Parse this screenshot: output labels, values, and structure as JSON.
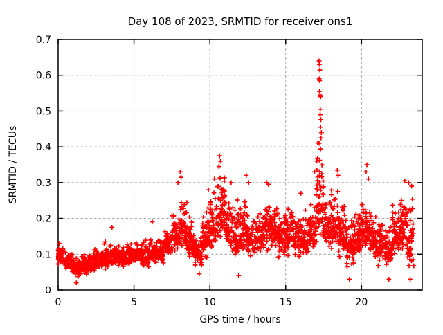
{
  "chart_data": {
    "type": "scatter",
    "title": "Day 108 of 2023, SRMTID for receiver ons1",
    "xlabel": "GPS time / hours",
    "ylabel": "SRMTID / TECUs",
    "xlim": [
      0,
      24
    ],
    "ylim": [
      0,
      0.7
    ],
    "xtick_values": [
      0,
      5,
      10,
      15,
      20
    ],
    "xtick_labels": [
      "0",
      "5",
      "10",
      "15",
      "20"
    ],
    "ytick_values": [
      0,
      0.1,
      0.2,
      0.3,
      0.4,
      0.5,
      0.6,
      0.7
    ],
    "ytick_labels": [
      "0",
      "0.1",
      "0.2",
      "0.3",
      "0.4",
      "0.5",
      "0.6",
      "0.7"
    ],
    "grid": true,
    "grid_color": "#a0a0a0",
    "axis_color": "#000000",
    "background_color": "#ffffff",
    "legend": "none",
    "marker": "plus",
    "marker_color": "#ff0000",
    "series_description": "SRMTID scatter, dense band ~0.05-0.2 TECUs; peaks ~0.33 at 8.0h, ~0.38 at 10.7h, maximum spike 0.64 at 17.2h, ~0.35 at 20.4h; data spans 0 to ~23.4 h",
    "density_bins": [
      [
        0.0,
        0.5,
        50,
        0.05,
        0.09,
        0.15
      ],
      [
        0.5,
        1.0,
        50,
        0.04,
        0.075,
        0.12
      ],
      [
        1.0,
        1.5,
        50,
        0.03,
        0.065,
        0.1
      ],
      [
        1.5,
        2.0,
        50,
        0.04,
        0.07,
        0.11
      ],
      [
        2.0,
        2.5,
        50,
        0.04,
        0.075,
        0.12
      ],
      [
        2.5,
        3.0,
        50,
        0.05,
        0.08,
        0.13
      ],
      [
        3.0,
        3.5,
        50,
        0.05,
        0.09,
        0.15
      ],
      [
        3.5,
        4.0,
        50,
        0.06,
        0.09,
        0.14
      ],
      [
        4.0,
        4.5,
        50,
        0.06,
        0.09,
        0.13
      ],
      [
        4.5,
        5.0,
        50,
        0.06,
        0.095,
        0.14
      ],
      [
        5.0,
        5.5,
        50,
        0.07,
        0.1,
        0.14
      ],
      [
        5.5,
        6.0,
        50,
        0.06,
        0.095,
        0.15
      ],
      [
        6.0,
        6.5,
        50,
        0.07,
        0.1,
        0.16
      ],
      [
        6.5,
        7.0,
        50,
        0.07,
        0.105,
        0.15
      ],
      [
        7.0,
        7.5,
        50,
        0.08,
        0.12,
        0.18
      ],
      [
        7.5,
        8.0,
        50,
        0.09,
        0.15,
        0.26
      ],
      [
        8.0,
        8.5,
        50,
        0.1,
        0.17,
        0.31
      ],
      [
        8.5,
        9.0,
        50,
        0.08,
        0.13,
        0.22
      ],
      [
        9.0,
        9.5,
        50,
        0.06,
        0.1,
        0.16
      ],
      [
        9.5,
        10.0,
        50,
        0.08,
        0.14,
        0.26
      ],
      [
        10.0,
        10.5,
        50,
        0.1,
        0.18,
        0.3
      ],
      [
        10.5,
        11.0,
        55,
        0.12,
        0.21,
        0.36
      ],
      [
        11.0,
        11.5,
        50,
        0.1,
        0.17,
        0.28
      ],
      [
        11.5,
        12.0,
        50,
        0.07,
        0.14,
        0.27
      ],
      [
        12.0,
        12.5,
        50,
        0.1,
        0.16,
        0.28
      ],
      [
        12.5,
        13.0,
        50,
        0.08,
        0.14,
        0.24
      ],
      [
        13.0,
        13.5,
        50,
        0.1,
        0.15,
        0.24
      ],
      [
        13.5,
        14.0,
        50,
        0.1,
        0.17,
        0.29
      ],
      [
        14.0,
        14.5,
        50,
        0.1,
        0.16,
        0.26
      ],
      [
        14.5,
        15.0,
        50,
        0.08,
        0.14,
        0.23
      ],
      [
        15.0,
        15.5,
        50,
        0.09,
        0.15,
        0.25
      ],
      [
        15.5,
        16.0,
        50,
        0.08,
        0.14,
        0.24
      ],
      [
        16.0,
        16.5,
        50,
        0.08,
        0.14,
        0.24
      ],
      [
        16.5,
        17.0,
        50,
        0.1,
        0.16,
        0.27
      ],
      [
        17.0,
        17.5,
        60,
        0.12,
        0.24,
        0.46
      ],
      [
        17.5,
        18.0,
        50,
        0.1,
        0.17,
        0.29
      ],
      [
        18.0,
        18.5,
        50,
        0.1,
        0.18,
        0.32
      ],
      [
        18.5,
        19.0,
        50,
        0.08,
        0.15,
        0.27
      ],
      [
        19.0,
        19.5,
        50,
        0.05,
        0.12,
        0.23
      ],
      [
        19.5,
        20.0,
        50,
        0.08,
        0.14,
        0.24
      ],
      [
        20.0,
        20.5,
        50,
        0.1,
        0.17,
        0.3
      ],
      [
        20.5,
        21.0,
        50,
        0.08,
        0.14,
        0.24
      ],
      [
        21.0,
        21.5,
        50,
        0.06,
        0.12,
        0.21
      ],
      [
        21.5,
        22.0,
        50,
        0.05,
        0.11,
        0.2
      ],
      [
        22.0,
        22.5,
        50,
        0.08,
        0.15,
        0.27
      ],
      [
        22.5,
        23.0,
        50,
        0.1,
        0.17,
        0.29
      ],
      [
        23.0,
        23.45,
        45,
        0.04,
        0.14,
        0.28
      ]
    ],
    "outlier_points": [
      [
        1.2,
        0.02
      ],
      [
        3.55,
        0.175
      ],
      [
        6.2,
        0.19
      ],
      [
        7.9,
        0.3
      ],
      [
        8.05,
        0.33
      ],
      [
        8.1,
        0.315
      ],
      [
        9.3,
        0.045
      ],
      [
        9.9,
        0.28
      ],
      [
        10.3,
        0.31
      ],
      [
        10.6,
        0.345
      ],
      [
        10.65,
        0.375
      ],
      [
        10.7,
        0.36
      ],
      [
        11.4,
        0.3
      ],
      [
        11.9,
        0.04
      ],
      [
        12.4,
        0.32
      ],
      [
        12.55,
        0.3
      ],
      [
        13.75,
        0.3
      ],
      [
        13.85,
        0.295
      ],
      [
        16.0,
        0.27
      ],
      [
        16.9,
        0.33
      ],
      [
        17.2,
        0.64
      ],
      [
        17.22,
        0.63
      ],
      [
        17.25,
        0.615
      ],
      [
        17.21,
        0.59
      ],
      [
        17.24,
        0.585
      ],
      [
        17.23,
        0.555
      ],
      [
        17.26,
        0.545
      ],
      [
        17.3,
        0.54
      ],
      [
        17.28,
        0.505
      ],
      [
        17.27,
        0.49
      ],
      [
        17.32,
        0.476
      ],
      [
        17.3,
        0.455
      ],
      [
        17.35,
        0.44
      ],
      [
        17.33,
        0.425
      ],
      [
        17.2,
        0.41
      ],
      [
        18.4,
        0.335
      ],
      [
        18.45,
        0.32
      ],
      [
        19.2,
        0.03
      ],
      [
        20.35,
        0.35
      ],
      [
        20.3,
        0.33
      ],
      [
        20.45,
        0.31
      ],
      [
        21.8,
        0.03
      ],
      [
        22.85,
        0.305
      ],
      [
        23.1,
        0.3
      ],
      [
        23.3,
        0.29
      ],
      [
        23.2,
        0.03
      ]
    ]
  }
}
